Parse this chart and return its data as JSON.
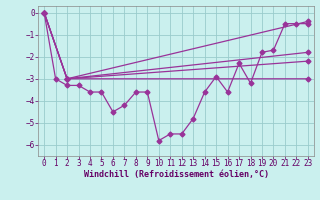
{
  "xlabel": "Windchill (Refroidissement éolien,°C)",
  "background_color": "#caf0ee",
  "grid_color": "#99cccc",
  "line_color": "#993399",
  "xlim": [
    -0.5,
    23.5
  ],
  "ylim": [
    -6.5,
    0.3
  ],
  "yticks": [
    0,
    -1,
    -2,
    -3,
    -4,
    -5,
    -6
  ],
  "xticks": [
    0,
    1,
    2,
    3,
    4,
    5,
    6,
    7,
    8,
    9,
    10,
    11,
    12,
    13,
    14,
    15,
    16,
    17,
    18,
    19,
    20,
    21,
    22,
    23
  ],
  "series0_x": [
    0,
    1,
    2,
    3,
    4,
    5,
    6,
    7,
    8,
    9,
    10,
    11,
    12,
    13,
    14,
    15,
    16,
    17,
    18,
    19,
    20,
    21,
    22,
    23
  ],
  "series0_y": [
    0,
    -3,
    -3.3,
    -3.3,
    -3.6,
    -3.6,
    -4.5,
    -4.2,
    -3.6,
    -3.6,
    -5.8,
    -5.5,
    -5.5,
    -4.8,
    -3.6,
    -2.9,
    -3.6,
    -2.3,
    -3.2,
    -1.8,
    -1.7,
    -0.5,
    -0.5,
    -0.5
  ],
  "straight_lines": [
    {
      "x": [
        0,
        2,
        23
      ],
      "y": [
        0,
        -3,
        -0.4
      ]
    },
    {
      "x": [
        0,
        2,
        23
      ],
      "y": [
        0,
        -3,
        -1.8
      ]
    },
    {
      "x": [
        0,
        2,
        23
      ],
      "y": [
        0,
        -3,
        -2.2
      ]
    },
    {
      "x": [
        0,
        2,
        23
      ],
      "y": [
        0,
        -3,
        -3.0
      ]
    }
  ],
  "marker": "D",
  "marker_size": 2.5,
  "linewidth": 0.9,
  "tick_fontsize": 5.5,
  "xlabel_fontsize": 6.0,
  "xlabel_color": "#660066",
  "tick_color": "#660066"
}
